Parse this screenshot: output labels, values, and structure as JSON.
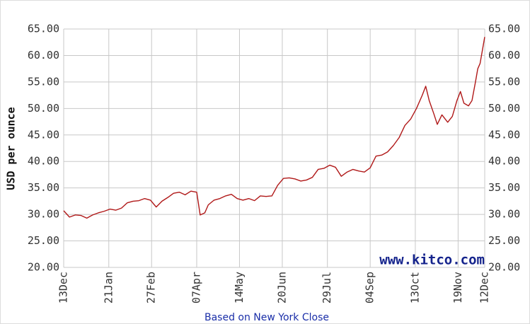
{
  "chart_data": {
    "type": "line",
    "y_label": "USD per ounce",
    "x_label": "Based on New York Close",
    "annotation": "www.kitco.com",
    "xlim": [
      0,
      364
    ],
    "xticks": [
      {
        "value": 0,
        "label": "13Dec"
      },
      {
        "value": 39,
        "label": "21Jan"
      },
      {
        "value": 76,
        "label": "27Feb"
      },
      {
        "value": 115,
        "label": "07Apr"
      },
      {
        "value": 152,
        "label": "14May"
      },
      {
        "value": 189,
        "label": "20Jun"
      },
      {
        "value": 228,
        "label": "29Jul"
      },
      {
        "value": 265,
        "label": "04Sep"
      },
      {
        "value": 304,
        "label": "13Oct"
      },
      {
        "value": 341,
        "label": "19Nov"
      },
      {
        "value": 364,
        "label": "12Dec"
      }
    ],
    "ylim": [
      20,
      65
    ],
    "yticks": [
      {
        "value": 20,
        "label": "20.00"
      },
      {
        "value": 25,
        "label": "25.00"
      },
      {
        "value": 30,
        "label": "30.00"
      },
      {
        "value": 35,
        "label": "35.00"
      },
      {
        "value": 40,
        "label": "40.00"
      },
      {
        "value": 45,
        "label": "45.00"
      },
      {
        "value": 50,
        "label": "50.00"
      },
      {
        "value": 55,
        "label": "55.00"
      },
      {
        "value": 60,
        "label": "60.00"
      },
      {
        "value": 65,
        "label": "65.00"
      }
    ],
    "grid": true,
    "x": [
      0,
      5,
      10,
      15,
      20,
      25,
      30,
      35,
      40,
      45,
      50,
      55,
      60,
      65,
      70,
      75,
      80,
      85,
      90,
      95,
      100,
      105,
      110,
      115,
      118,
      122,
      125,
      130,
      135,
      140,
      145,
      150,
      155,
      160,
      165,
      170,
      175,
      180,
      185,
      190,
      195,
      200,
      205,
      210,
      215,
      220,
      225,
      230,
      235,
      240,
      245,
      250,
      255,
      260,
      265,
      270,
      275,
      280,
      285,
      290,
      295,
      300,
      305,
      310,
      313,
      316,
      320,
      323,
      327,
      332,
      336,
      340,
      343,
      346,
      350,
      353,
      356,
      358,
      360,
      362,
      364
    ],
    "series": [
      {
        "color": "#b01818",
        "values": [
          30.7,
          29.5,
          29.9,
          29.8,
          29.3,
          29.9,
          30.3,
          30.6,
          31.0,
          30.8,
          31.2,
          32.2,
          32.5,
          32.6,
          33.0,
          32.7,
          31.4,
          32.5,
          33.2,
          34.0,
          34.2,
          33.7,
          34.4,
          34.2,
          29.9,
          30.3,
          31.8,
          32.7,
          33.0,
          33.5,
          33.8,
          33.0,
          32.7,
          33.0,
          32.6,
          33.5,
          33.4,
          33.5,
          35.5,
          36.8,
          36.9,
          36.7,
          36.3,
          36.5,
          37.0,
          38.5,
          38.7,
          39.3,
          38.9,
          37.2,
          38.0,
          38.5,
          38.2,
          38.0,
          38.8,
          41.0,
          41.2,
          41.8,
          43.0,
          44.5,
          46.8,
          48.0,
          50.0,
          52.5,
          54.2,
          51.5,
          49.0,
          47.0,
          48.8,
          47.4,
          48.5,
          51.5,
          53.2,
          51.0,
          50.5,
          51.5,
          55.0,
          57.5,
          58.5,
          61.0,
          63.5
        ]
      }
    ]
  }
}
